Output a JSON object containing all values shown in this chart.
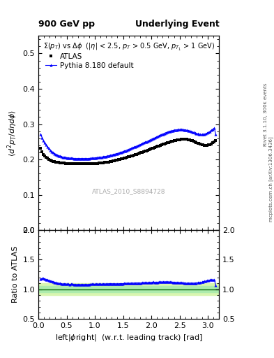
{
  "title_left": "900 GeV pp",
  "title_right": "Underlying Event",
  "subtitle": "$\\Sigma(p_{T})$ vs $\\Delta\\phi$  ($|\\eta|$ < 2.5, $p_{T}$ > 0.5 GeV, $p_{T_1}$ > 1 GeV)",
  "watermark": "ATLAS_2010_S8894728",
  "right_label_top": "Rivet 3.1.10, 300k events",
  "right_label_bot": "mcplots.cern.ch [arXiv:1306.3436]",
  "xlabel": "left|$\\phi$right|  (w.r.t. leading track) [rad]",
  "ylabel": "$\\langle d^2 p_T/d\\eta d\\phi \\rangle$",
  "ylabel_ratio": "Ratio to ATLAS",
  "legend_atlas": "ATLAS",
  "legend_pythia": "Pythia 8.180 default",
  "ylim_main": [
    0.0,
    0.55
  ],
  "ylim_ratio": [
    0.5,
    2.0
  ],
  "xlim": [
    0.0,
    3.2
  ],
  "yticks_main": [
    0.0,
    0.1,
    0.2,
    0.3,
    0.4,
    0.5
  ],
  "yticks_ratio": [
    0.5,
    1.0,
    1.5,
    2.0
  ],
  "atlas_x": [
    0.0408,
    0.0654,
    0.09,
    0.1146,
    0.1393,
    0.1639,
    0.1885,
    0.2131,
    0.2378,
    0.2624,
    0.287,
    0.3116,
    0.3362,
    0.3609,
    0.3855,
    0.4101,
    0.4347,
    0.4593,
    0.484,
    0.5086,
    0.5332,
    0.5578,
    0.5824,
    0.6071,
    0.6317,
    0.6563,
    0.6809,
    0.7055,
    0.7302,
    0.7548,
    0.7794,
    0.804,
    0.8286,
    0.8533,
    0.8779,
    0.9025,
    0.9271,
    0.9517,
    0.9764,
    1.001,
    1.026,
    1.05,
    1.075,
    1.099,
    1.124,
    1.148,
    1.173,
    1.198,
    1.222,
    1.247,
    1.271,
    1.296,
    1.32,
    1.345,
    1.37,
    1.394,
    1.419,
    1.443,
    1.468,
    1.492,
    1.517,
    1.542,
    1.566,
    1.591,
    1.615,
    1.64,
    1.664,
    1.689,
    1.714,
    1.738,
    1.763,
    1.787,
    1.812,
    1.836,
    1.861,
    1.886,
    1.91,
    1.935,
    1.959,
    1.984,
    2.008,
    2.033,
    2.057,
    2.082,
    2.107,
    2.131,
    2.156,
    2.18,
    2.205,
    2.229,
    2.254,
    2.279,
    2.303,
    2.328,
    2.352,
    2.377,
    2.401,
    2.426,
    2.451,
    2.475,
    2.5,
    2.524,
    2.549,
    2.573,
    2.598,
    2.622,
    2.647,
    2.672,
    2.696,
    2.721,
    2.745,
    2.77,
    2.794,
    2.819,
    2.843,
    2.868,
    2.893,
    2.917,
    2.942,
    2.966,
    2.991,
    3.015,
    3.04,
    3.064,
    3.089,
    3.114,
    3.138
  ],
  "atlas_y": [
    0.232,
    0.222,
    0.215,
    0.21,
    0.207,
    0.204,
    0.201,
    0.199,
    0.197,
    0.195,
    0.194,
    0.193,
    0.193,
    0.192,
    0.191,
    0.191,
    0.19,
    0.19,
    0.189,
    0.189,
    0.189,
    0.189,
    0.188,
    0.188,
    0.188,
    0.188,
    0.188,
    0.188,
    0.188,
    0.188,
    0.188,
    0.188,
    0.188,
    0.188,
    0.188,
    0.188,
    0.188,
    0.188,
    0.188,
    0.189,
    0.189,
    0.189,
    0.19,
    0.19,
    0.191,
    0.191,
    0.192,
    0.192,
    0.193,
    0.193,
    0.194,
    0.195,
    0.196,
    0.197,
    0.198,
    0.199,
    0.2,
    0.201,
    0.202,
    0.203,
    0.204,
    0.205,
    0.206,
    0.208,
    0.209,
    0.21,
    0.211,
    0.213,
    0.214,
    0.215,
    0.217,
    0.218,
    0.22,
    0.221,
    0.222,
    0.224,
    0.225,
    0.227,
    0.228,
    0.23,
    0.231,
    0.232,
    0.234,
    0.235,
    0.237,
    0.238,
    0.24,
    0.241,
    0.243,
    0.244,
    0.245,
    0.247,
    0.248,
    0.25,
    0.251,
    0.252,
    0.253,
    0.254,
    0.255,
    0.256,
    0.256,
    0.257,
    0.257,
    0.257,
    0.257,
    0.257,
    0.256,
    0.255,
    0.254,
    0.253,
    0.251,
    0.25,
    0.248,
    0.246,
    0.245,
    0.243,
    0.242,
    0.241,
    0.24,
    0.24,
    0.24,
    0.241,
    0.242,
    0.244,
    0.247,
    0.25,
    0.254
  ],
  "pythia_x": [
    0.0408,
    0.0654,
    0.09,
    0.1146,
    0.1393,
    0.1639,
    0.1885,
    0.2131,
    0.2378,
    0.2624,
    0.287,
    0.3116,
    0.3362,
    0.3609,
    0.3855,
    0.4101,
    0.4347,
    0.4593,
    0.484,
    0.5086,
    0.5332,
    0.5578,
    0.5824,
    0.6071,
    0.6317,
    0.6563,
    0.6809,
    0.7055,
    0.7302,
    0.7548,
    0.7794,
    0.804,
    0.8286,
    0.8533,
    0.8779,
    0.9025,
    0.9271,
    0.9517,
    0.9764,
    1.001,
    1.026,
    1.05,
    1.075,
    1.099,
    1.124,
    1.148,
    1.173,
    1.198,
    1.222,
    1.247,
    1.271,
    1.296,
    1.32,
    1.345,
    1.37,
    1.394,
    1.419,
    1.443,
    1.468,
    1.492,
    1.517,
    1.542,
    1.566,
    1.591,
    1.615,
    1.64,
    1.664,
    1.689,
    1.714,
    1.738,
    1.763,
    1.787,
    1.812,
    1.836,
    1.861,
    1.886,
    1.91,
    1.935,
    1.959,
    1.984,
    2.008,
    2.033,
    2.057,
    2.082,
    2.107,
    2.131,
    2.156,
    2.18,
    2.205,
    2.229,
    2.254,
    2.279,
    2.303,
    2.328,
    2.352,
    2.377,
    2.401,
    2.426,
    2.451,
    2.475,
    2.5,
    2.524,
    2.549,
    2.573,
    2.598,
    2.622,
    2.647,
    2.672,
    2.696,
    2.721,
    2.745,
    2.77,
    2.794,
    2.819,
    2.843,
    2.868,
    2.893,
    2.917,
    2.942,
    2.966,
    2.991,
    3.015,
    3.04,
    3.064,
    3.089,
    3.114,
    3.138
  ],
  "pythia_y": [
    0.272,
    0.262,
    0.254,
    0.247,
    0.241,
    0.236,
    0.231,
    0.227,
    0.223,
    0.22,
    0.217,
    0.215,
    0.213,
    0.211,
    0.21,
    0.208,
    0.207,
    0.207,
    0.206,
    0.205,
    0.205,
    0.204,
    0.204,
    0.204,
    0.203,
    0.203,
    0.203,
    0.203,
    0.203,
    0.203,
    0.203,
    0.203,
    0.203,
    0.203,
    0.203,
    0.203,
    0.204,
    0.204,
    0.204,
    0.205,
    0.205,
    0.206,
    0.206,
    0.207,
    0.207,
    0.208,
    0.209,
    0.209,
    0.21,
    0.211,
    0.212,
    0.213,
    0.214,
    0.215,
    0.216,
    0.217,
    0.218,
    0.22,
    0.221,
    0.222,
    0.224,
    0.225,
    0.227,
    0.228,
    0.23,
    0.231,
    0.233,
    0.235,
    0.236,
    0.238,
    0.24,
    0.241,
    0.243,
    0.245,
    0.247,
    0.249,
    0.25,
    0.252,
    0.254,
    0.256,
    0.258,
    0.26,
    0.261,
    0.263,
    0.265,
    0.267,
    0.269,
    0.271,
    0.272,
    0.274,
    0.276,
    0.277,
    0.279,
    0.28,
    0.281,
    0.282,
    0.283,
    0.284,
    0.284,
    0.285,
    0.285,
    0.285,
    0.285,
    0.284,
    0.284,
    0.283,
    0.282,
    0.281,
    0.28,
    0.278,
    0.277,
    0.275,
    0.274,
    0.273,
    0.272,
    0.271,
    0.271,
    0.271,
    0.272,
    0.273,
    0.275,
    0.277,
    0.28,
    0.283,
    0.286,
    0.289,
    0.272
  ],
  "atlas_color": "black",
  "pythia_color": "blue",
  "band_inner_color": "#adebad",
  "band_outer_color": "#d9f5b0",
  "ratio_line_color": "#006600"
}
